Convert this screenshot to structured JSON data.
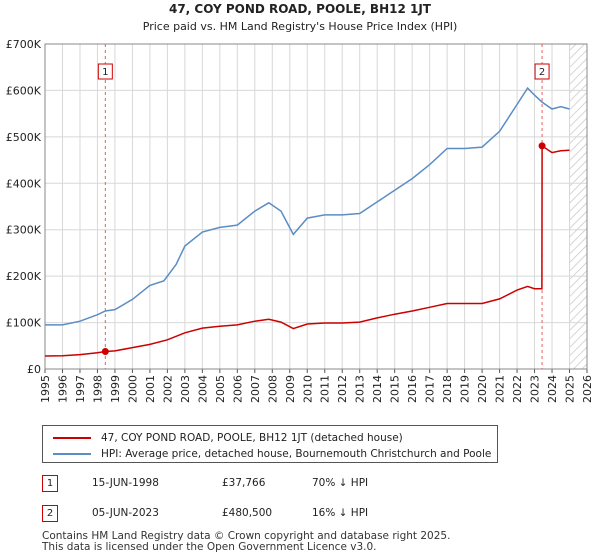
{
  "chart_data": {
    "type": "line",
    "title": "47, COY POND ROAD, POOLE, BH12 1JT",
    "subtitle": "Price paid vs. HM Land Registry's House Price Index (HPI)",
    "x_ticks": [
      "1995",
      "1996",
      "1997",
      "1998",
      "1999",
      "2000",
      "2001",
      "2002",
      "2003",
      "2004",
      "2005",
      "2006",
      "2007",
      "2008",
      "2009",
      "2010",
      "2011",
      "2012",
      "2013",
      "2014",
      "2015",
      "2016",
      "2017",
      "2018",
      "2019",
      "2020",
      "2021",
      "2022",
      "2023",
      "2024",
      "2025",
      "2026"
    ],
    "y_ticks": [
      "£0",
      "£100K",
      "£200K",
      "£300K",
      "£400K",
      "£500K",
      "£600K",
      "£700K"
    ],
    "xlim": [
      1995,
      2026
    ],
    "ylim": [
      0,
      700000
    ],
    "future_shaded_from": 2025.0,
    "series": [
      {
        "name": "47, COY POND ROAD, POOLE, BH12 1JT (detached house)",
        "color": "#cc0000",
        "points": [
          [
            1995.0,
            28000
          ],
          [
            1996.0,
            28500
          ],
          [
            1997.0,
            31000
          ],
          [
            1998.0,
            35000
          ],
          [
            1998.45,
            37766
          ],
          [
            1999.0,
            39000
          ],
          [
            2000.0,
            46000
          ],
          [
            2001.0,
            53000
          ],
          [
            2002.0,
            63000
          ],
          [
            2003.0,
            78000
          ],
          [
            2004.0,
            88000
          ],
          [
            2005.0,
            92000
          ],
          [
            2006.0,
            95000
          ],
          [
            2007.0,
            103000
          ],
          [
            2007.8,
            107000
          ],
          [
            2008.5,
            101000
          ],
          [
            2009.2,
            87000
          ],
          [
            2010.0,
            97000
          ],
          [
            2011.0,
            99000
          ],
          [
            2012.0,
            99000
          ],
          [
            2013.0,
            101000
          ],
          [
            2014.0,
            110000
          ],
          [
            2015.0,
            118000
          ],
          [
            2016.0,
            125000
          ],
          [
            2017.0,
            133000
          ],
          [
            2018.0,
            141000
          ],
          [
            2019.0,
            141000
          ],
          [
            2020.0,
            141000
          ],
          [
            2021.0,
            151000
          ],
          [
            2022.0,
            170000
          ],
          [
            2022.6,
            178000
          ],
          [
            2023.0,
            173000
          ],
          [
            2023.42,
            173000
          ],
          [
            2023.43,
            480500
          ],
          [
            2024.0,
            466000
          ],
          [
            2024.5,
            470000
          ],
          [
            2025.0,
            471000
          ]
        ]
      },
      {
        "name": "HPI: Average price, detached house, Bournemouth Christchurch and Poole",
        "color": "#5b8dc4",
        "points": [
          [
            1995.0,
            95000
          ],
          [
            1996.0,
            95000
          ],
          [
            1997.0,
            103000
          ],
          [
            1998.0,
            117000
          ],
          [
            1998.45,
            125000
          ],
          [
            1999.0,
            128000
          ],
          [
            2000.0,
            150000
          ],
          [
            2001.0,
            180000
          ],
          [
            2001.8,
            190000
          ],
          [
            2002.5,
            225000
          ],
          [
            2003.0,
            265000
          ],
          [
            2004.0,
            295000
          ],
          [
            2005.0,
            305000
          ],
          [
            2006.0,
            310000
          ],
          [
            2007.0,
            340000
          ],
          [
            2007.8,
            358000
          ],
          [
            2008.5,
            340000
          ],
          [
            2009.2,
            290000
          ],
          [
            2010.0,
            325000
          ],
          [
            2011.0,
            332000
          ],
          [
            2012.0,
            332000
          ],
          [
            2013.0,
            335000
          ],
          [
            2014.0,
            360000
          ],
          [
            2015.0,
            385000
          ],
          [
            2016.0,
            410000
          ],
          [
            2017.0,
            440000
          ],
          [
            2018.0,
            475000
          ],
          [
            2019.0,
            475000
          ],
          [
            2020.0,
            478000
          ],
          [
            2021.0,
            512000
          ],
          [
            2022.0,
            570000
          ],
          [
            2022.6,
            605000
          ],
          [
            2023.0,
            590000
          ],
          [
            2023.42,
            575000
          ],
          [
            2024.0,
            560000
          ],
          [
            2024.5,
            565000
          ],
          [
            2025.0,
            560000
          ]
        ]
      }
    ],
    "markers": [
      {
        "label": "1",
        "x": 1998.45,
        "y": 37766
      },
      {
        "label": "2",
        "x": 2023.43,
        "y": 480500
      }
    ]
  },
  "legend": {
    "property_label": "47, COY POND ROAD, POOLE, BH12 1JT (detached house)",
    "hpi_label": "HPI: Average price, detached house, Bournemouth Christchurch and Poole",
    "property_color": "#cc0000",
    "hpi_color": "#5b8dc4"
  },
  "sales": [
    {
      "num": "1",
      "date": "15-JUN-1998",
      "price": "£37,766",
      "hpi": "70% ↓ HPI"
    },
    {
      "num": "2",
      "date": "05-JUN-2023",
      "price": "£480,500",
      "hpi": "16% ↓ HPI"
    }
  ],
  "footer": {
    "line1": "Contains HM Land Registry data © Crown copyright and database right 2025.",
    "line2": "This data is licensed under the Open Government Licence v3.0."
  }
}
